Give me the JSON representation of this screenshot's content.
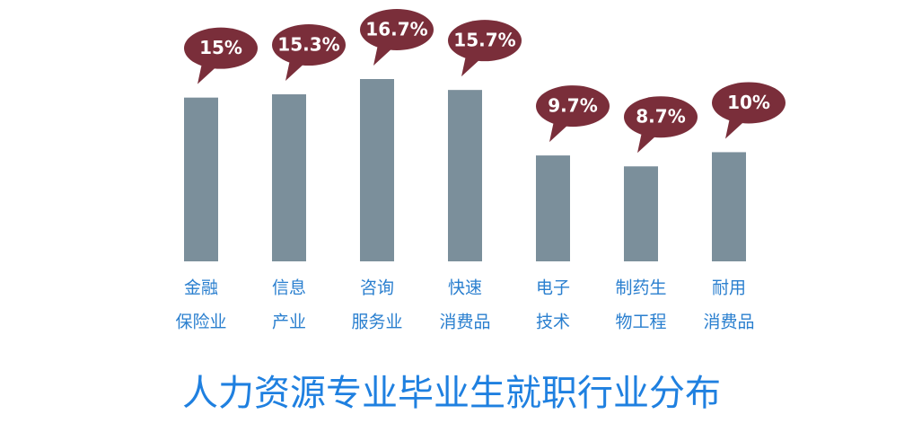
{
  "chart_data": {
    "type": "bar",
    "title": "人力资源专业毕业生就职行业分布",
    "categories": [
      [
        "金融",
        "保险业"
      ],
      [
        "信息",
        "产业"
      ],
      [
        "咨询",
        "服务业"
      ],
      [
        "快速",
        "消费品"
      ],
      [
        "电子",
        "技术"
      ],
      [
        "制药生",
        "物工程"
      ],
      [
        "耐用",
        "消费品"
      ]
    ],
    "values": [
      15,
      15.3,
      16.7,
      15.7,
      9.7,
      8.7,
      10
    ],
    "value_labels": [
      "15%",
      "15.3%",
      "16.7%",
      "15.7%",
      "9.7%",
      "8.7%",
      "10%"
    ],
    "color": "#7b8f9b",
    "label_color": "#7a2e3a"
  }
}
